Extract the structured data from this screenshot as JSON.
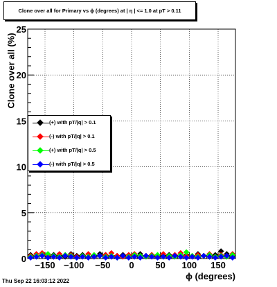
{
  "title": "Clone  over all for Primary vs ϕ (degrees) at |   η | <= 1.0 at pT > 0.11",
  "footer": "Thu Sep 22 16:03:12 2022",
  "chart_data": {
    "type": "scatter",
    "xlabel": "ϕ (degrees)",
    "ylabel": "Clone  over all (%)",
    "xlim": [
      -180,
      180
    ],
    "ylim": [
      0,
      25
    ],
    "xticks": [
      "-150",
      "-100",
      "-50",
      "0",
      "50",
      "100",
      "150"
    ],
    "xtick_values": [
      -150,
      -100,
      -50,
      0,
      50,
      100,
      150
    ],
    "yticks": [
      "0",
      "5",
      "10",
      "15",
      "20",
      "25"
    ],
    "ytick_values": [
      0,
      5,
      10,
      15,
      20,
      25
    ],
    "grid": true,
    "legend_position": "left",
    "series": [
      {
        "name": "(+) with pT/|q| > 0.1",
        "color": "#000000",
        "x": [
          -175,
          -165,
          -155,
          -145,
          -135,
          -125,
          -115,
          -105,
          -95,
          -85,
          -75,
          -65,
          -55,
          -45,
          -35,
          -25,
          -15,
          -5,
          5,
          15,
          25,
          35,
          45,
          55,
          65,
          75,
          85,
          95,
          105,
          115,
          125,
          135,
          145,
          155,
          165,
          175
        ],
        "y": [
          0.4,
          0.3,
          0.5,
          0.2,
          0.4,
          0.3,
          0.2,
          0.5,
          0.3,
          0.4,
          0.2,
          0.3,
          0.5,
          0.4,
          0.2,
          0.3,
          0.4,
          0.2,
          0.3,
          0.5,
          0.3,
          0.4,
          0.2,
          0.3,
          0.4,
          0.3,
          0.2,
          0.4,
          0.3,
          0.5,
          0.3,
          0.2,
          0.4,
          0.8,
          0.5,
          0.3
        ]
      },
      {
        "name": "(-) with pT/|q| > 0.1",
        "color": "#ff0000",
        "x": [
          -175,
          -165,
          -155,
          -145,
          -135,
          -125,
          -115,
          -105,
          -95,
          -85,
          -75,
          -65,
          -55,
          -45,
          -35,
          -25,
          -15,
          -5,
          5,
          15,
          25,
          35,
          45,
          55,
          65,
          75,
          85,
          95,
          105,
          115,
          125,
          135,
          145,
          155,
          165,
          175
        ],
        "y": [
          0.3,
          0.5,
          0.6,
          0.4,
          0.2,
          0.5,
          0.3,
          0.4,
          0.2,
          0.3,
          0.5,
          0.2,
          0.3,
          0.4,
          0.6,
          0.3,
          0.2,
          0.4,
          0.5,
          0.3,
          0.2,
          0.4,
          0.3,
          0.5,
          0.2,
          0.4,
          0.6,
          0.3,
          0.2,
          0.4,
          0.3,
          0.5,
          0.2,
          0.4,
          0.3,
          0.5
        ]
      },
      {
        "name": "(+) with pT/|q| > 0.5",
        "color": "#00ff00",
        "x": [
          -175,
          -165,
          -155,
          -145,
          -135,
          -125,
          -115,
          -105,
          -95,
          -85,
          -75,
          -65,
          -55,
          -45,
          -35,
          -25,
          -15,
          -5,
          5,
          15,
          25,
          35,
          45,
          55,
          65,
          75,
          85,
          95,
          105,
          115,
          125,
          135,
          145,
          155,
          165,
          175
        ],
        "y": [
          0.2,
          0.3,
          0.4,
          0.5,
          0.3,
          0.2,
          0.4,
          0.3,
          0.1,
          0.3,
          0.2,
          0.4,
          0.3,
          0.2,
          0.3,
          0.1,
          0.3,
          0.2,
          0.4,
          0.3,
          0.2,
          0.3,
          0.4,
          0.2,
          0.3,
          0.2,
          0.4,
          0.7,
          0.3,
          0.2,
          0.3,
          0.4,
          0.2,
          0.3,
          0.2,
          0.4
        ]
      },
      {
        "name": "(-) with pT/|q| > 0.5",
        "color": "#0000ff",
        "x": [
          -175,
          -165,
          -155,
          -145,
          -135,
          -125,
          -115,
          -105,
          -95,
          -85,
          -75,
          -65,
          -55,
          -45,
          -35,
          -25,
          -15,
          -5,
          5,
          15,
          25,
          35,
          45,
          55,
          65,
          75,
          85,
          95,
          105,
          115,
          125,
          135,
          145,
          155,
          165,
          175
        ],
        "y": [
          0.1,
          0.2,
          0.3,
          0.1,
          0.2,
          0.1,
          0.3,
          0.2,
          0.1,
          0.2,
          0.1,
          0.2,
          0.3,
          0.1,
          0.2,
          0.1,
          0.3,
          0.1,
          0.2,
          0.1,
          0.3,
          0.2,
          0.1,
          0.2,
          0.1,
          0.3,
          0.2,
          0.1,
          0.2,
          0.1,
          0.3,
          0.2,
          0.1,
          0.2,
          0.3,
          0.1
        ]
      }
    ]
  }
}
